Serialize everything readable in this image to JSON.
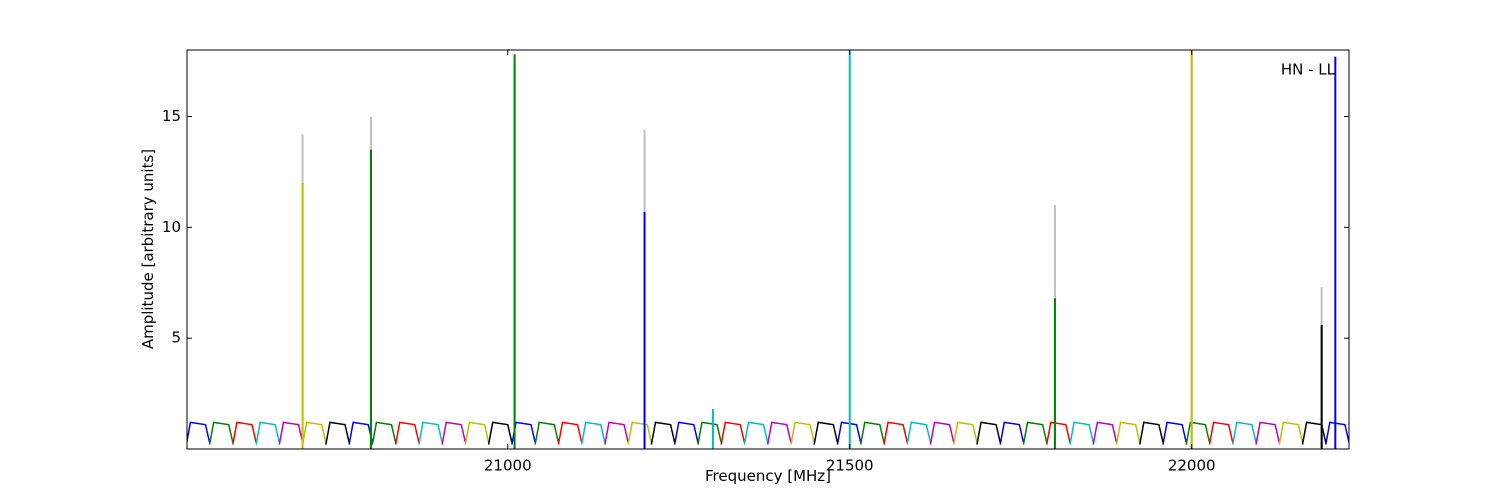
{
  "chart_data": {
    "type": "line",
    "annotation": "HN - LL",
    "xlabel": "Frequency [MHz]",
    "ylabel": "Amplitude [arbitrary units]",
    "xlim": [
      20531,
      22230
    ],
    "ylim": [
      0,
      18
    ],
    "xticks": [
      21000,
      21500,
      22000
    ],
    "yticks": [
      5,
      10,
      15
    ],
    "series": [
      {
        "color": "#0000ff",
        "x": [
          20530,
          20536,
          20558,
          20564,
          null,
          20768,
          20774,
          20796,
          20802,
          null,
          21006,
          21012,
          21034,
          21040,
          null,
          21244,
          21250,
          21272,
          21278,
          null,
          21482,
          21488,
          21510,
          21516,
          null,
          21720,
          21726,
          21748,
          21754,
          null,
          21958,
          21964,
          21986,
          21992,
          null,
          22196,
          22202,
          22224,
          22230
        ],
        "values": [
          0.2,
          1.2,
          1.1,
          0.3,
          null,
          0.2,
          1.2,
          1.1,
          0.3,
          null,
          0.2,
          1.2,
          1.1,
          0.3,
          null,
          0.2,
          1.2,
          1.1,
          0.3,
          null,
          0.2,
          1.2,
          1.1,
          0.3,
          null,
          0.2,
          1.2,
          1.1,
          0.3,
          null,
          0.2,
          1.2,
          1.1,
          0.3,
          null,
          0.2,
          1.2,
          1.1,
          0.3
        ]
      },
      {
        "color": "#008000",
        "x": [
          20564,
          20570,
          20592,
          20598,
          null,
          20802,
          20808,
          20830,
          20836,
          null,
          21040,
          21046,
          21068,
          21074,
          null,
          21278,
          21284,
          21306,
          21312,
          null,
          21516,
          21522,
          21544,
          21550,
          null,
          21754,
          21760,
          21782,
          21788,
          null,
          21992,
          21998,
          22020,
          22026
        ],
        "values": [
          0.2,
          1.2,
          1.1,
          0.3,
          null,
          0.2,
          1.2,
          1.1,
          0.3,
          null,
          0.2,
          1.2,
          1.1,
          0.3,
          null,
          0.2,
          1.2,
          1.1,
          0.3,
          null,
          0.2,
          1.2,
          1.1,
          0.3,
          null,
          0.2,
          1.2,
          1.1,
          0.3,
          null,
          0.2,
          1.2,
          1.1,
          0.3
        ]
      },
      {
        "color": "#ff0000",
        "x": [
          20598,
          20604,
          20626,
          20632,
          null,
          20836,
          20842,
          20864,
          20870,
          null,
          21074,
          21080,
          21102,
          21108,
          null,
          21312,
          21318,
          21340,
          21346,
          null,
          21550,
          21556,
          21578,
          21584,
          null,
          21788,
          21794,
          21816,
          21822,
          null,
          22026,
          22032,
          22054,
          22060
        ],
        "values": [
          0.2,
          1.2,
          1.1,
          0.3,
          null,
          0.2,
          1.2,
          1.1,
          0.3,
          null,
          0.2,
          1.2,
          1.1,
          0.3,
          null,
          0.2,
          1.2,
          1.1,
          0.3,
          null,
          0.2,
          1.2,
          1.1,
          0.3,
          null,
          0.2,
          1.2,
          1.1,
          0.3,
          null,
          0.2,
          1.2,
          1.1,
          0.3
        ]
      },
      {
        "color": "#00bfbf",
        "x": [
          20632,
          20638,
          20660,
          20666,
          null,
          20870,
          20876,
          20898,
          20904,
          null,
          21108,
          21114,
          21136,
          21142,
          null,
          21346,
          21352,
          21374,
          21380,
          null,
          21584,
          21590,
          21612,
          21618,
          null,
          21822,
          21828,
          21850,
          21856,
          null,
          22060,
          22066,
          22088,
          22094
        ],
        "values": [
          0.2,
          1.2,
          1.1,
          0.3,
          null,
          0.2,
          1.2,
          1.1,
          0.3,
          null,
          0.2,
          1.2,
          1.1,
          0.3,
          null,
          0.2,
          1.2,
          1.1,
          0.3,
          null,
          0.2,
          1.2,
          1.1,
          0.3,
          null,
          0.2,
          1.2,
          1.1,
          0.3,
          null,
          0.2,
          1.2,
          1.1,
          0.3
        ]
      },
      {
        "color": "#bf00bf",
        "x": [
          20666,
          20672,
          20694,
          20700,
          null,
          20904,
          20910,
          20932,
          20938,
          null,
          21142,
          21148,
          21170,
          21176,
          null,
          21380,
          21386,
          21408,
          21414,
          null,
          21618,
          21624,
          21646,
          21652,
          null,
          21856,
          21862,
          21884,
          21890,
          null,
          22094,
          22100,
          22122,
          22128
        ],
        "values": [
          0.2,
          1.2,
          1.1,
          0.3,
          null,
          0.2,
          1.2,
          1.1,
          0.3,
          null,
          0.2,
          1.2,
          1.1,
          0.3,
          null,
          0.2,
          1.2,
          1.1,
          0.3,
          null,
          0.2,
          1.2,
          1.1,
          0.3,
          null,
          0.2,
          1.2,
          1.1,
          0.3,
          null,
          0.2,
          1.2,
          1.1,
          0.3
        ]
      },
      {
        "color": "#bfbf00",
        "x": [
          20700,
          20706,
          20728,
          20734,
          null,
          20938,
          20944,
          20966,
          20972,
          null,
          21176,
          21182,
          21204,
          21210,
          null,
          21414,
          21420,
          21442,
          21448,
          null,
          21652,
          21658,
          21680,
          21686,
          null,
          21890,
          21896,
          21918,
          21924,
          null,
          22128,
          22134,
          22156,
          22162
        ],
        "values": [
          0.2,
          1.2,
          1.1,
          0.3,
          null,
          0.2,
          1.2,
          1.1,
          0.3,
          null,
          0.2,
          1.2,
          1.1,
          0.3,
          null,
          0.2,
          1.2,
          1.1,
          0.3,
          null,
          0.2,
          1.2,
          1.1,
          0.3,
          null,
          0.2,
          1.2,
          1.1,
          0.3,
          null,
          0.2,
          1.2,
          1.1,
          0.3
        ]
      },
      {
        "color": "#000000",
        "x": [
          20734,
          20740,
          20762,
          20768,
          null,
          20972,
          20978,
          21000,
          21006,
          null,
          21210,
          21216,
          21238,
          21244,
          null,
          21448,
          21454,
          21476,
          21482,
          null,
          21686,
          21692,
          21714,
          21720,
          null,
          21924,
          21930,
          21952,
          21958,
          null,
          22162,
          22168,
          22190,
          22196
        ],
        "values": [
          0.2,
          1.2,
          1.1,
          0.3,
          null,
          0.2,
          1.2,
          1.1,
          0.3,
          null,
          0.2,
          1.2,
          1.1,
          0.3,
          null,
          0.2,
          1.2,
          1.1,
          0.3,
          null,
          0.2,
          1.2,
          1.1,
          0.3,
          null,
          0.2,
          1.2,
          1.1,
          0.3,
          null,
          0.2,
          1.2,
          1.1,
          0.3
        ]
      }
    ],
    "stems": [
      {
        "x": 20700,
        "value": 14.2,
        "color": "#bfbfbf"
      },
      {
        "x": 20800,
        "value": 15.0,
        "color": "#bfbfbf"
      },
      {
        "x": 21200,
        "value": 14.4,
        "color": "#bfbfbf"
      },
      {
        "x": 21800,
        "value": 11.0,
        "color": "#bfbfbf"
      },
      {
        "x": 22000,
        "value": 18.0,
        "color": "#bfbfbf"
      },
      {
        "x": 22190,
        "value": 7.3,
        "color": "#bfbfbf"
      },
      {
        "x": 20700,
        "value": 12.0,
        "color": "#bfbf00"
      },
      {
        "x": 20800,
        "value": 13.5,
        "color": "#008000"
      },
      {
        "x": 21010,
        "value": 17.8,
        "color": "#008000"
      },
      {
        "x": 21200,
        "value": 10.7,
        "color": "#0000ff"
      },
      {
        "x": 21300,
        "value": 1.8,
        "color": "#00bfbf"
      },
      {
        "x": 21500,
        "value": 18.0,
        "color": "#00bfbf"
      },
      {
        "x": 21800,
        "value": 6.8,
        "color": "#008000"
      },
      {
        "x": 22000,
        "value": 18.0,
        "color": "#bfbf00"
      },
      {
        "x": 22190,
        "value": 5.6,
        "color": "#000000"
      },
      {
        "x": 22210,
        "value": 17.7,
        "color": "#0000ff"
      }
    ]
  }
}
